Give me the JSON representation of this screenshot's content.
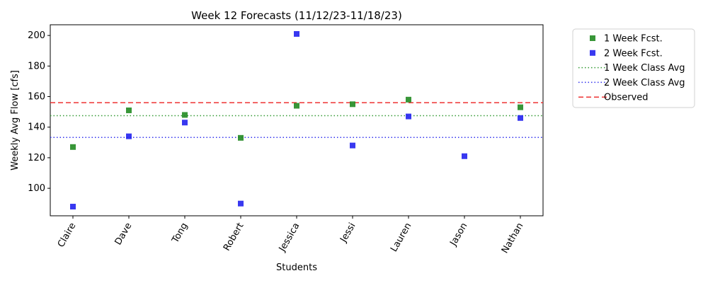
{
  "chart_data": {
    "type": "scatter",
    "title": "Week 12 Forecasts (11/12/23-11/18/23)",
    "xlabel": "Students",
    "ylabel": "Weekly Avg Flow [cfs]",
    "categories": [
      "Claire",
      "Dave",
      "Tong",
      "Robert",
      "Jessica",
      "Jessi",
      "Lauren",
      "Jason",
      "Nathan"
    ],
    "ylim": [
      82,
      207
    ],
    "yticks": [
      100,
      120,
      140,
      160,
      180,
      200
    ],
    "grid": false,
    "legend_position": "outside-upper-right",
    "series": [
      {
        "name": "1 Week Fcst.",
        "marker": "square",
        "color": "#228b22",
        "values": [
          127,
          151,
          148,
          133,
          154,
          155,
          158,
          null,
          153
        ]
      },
      {
        "name": "2 Week Fcst.",
        "marker": "square",
        "color": "#2222ee",
        "values": [
          88,
          134,
          143,
          90,
          201,
          128,
          147,
          121,
          146
        ]
      }
    ],
    "reference_lines": [
      {
        "name": "1 Week Class Avg",
        "style": "dotted",
        "color": "#339933",
        "value": 147.5
      },
      {
        "name": "2 Week Class Avg",
        "style": "dotted",
        "color": "#3333ee",
        "value": 133.3
      },
      {
        "name": "Observed",
        "style": "dashed",
        "color": "#ee3333",
        "value": 156
      }
    ]
  }
}
